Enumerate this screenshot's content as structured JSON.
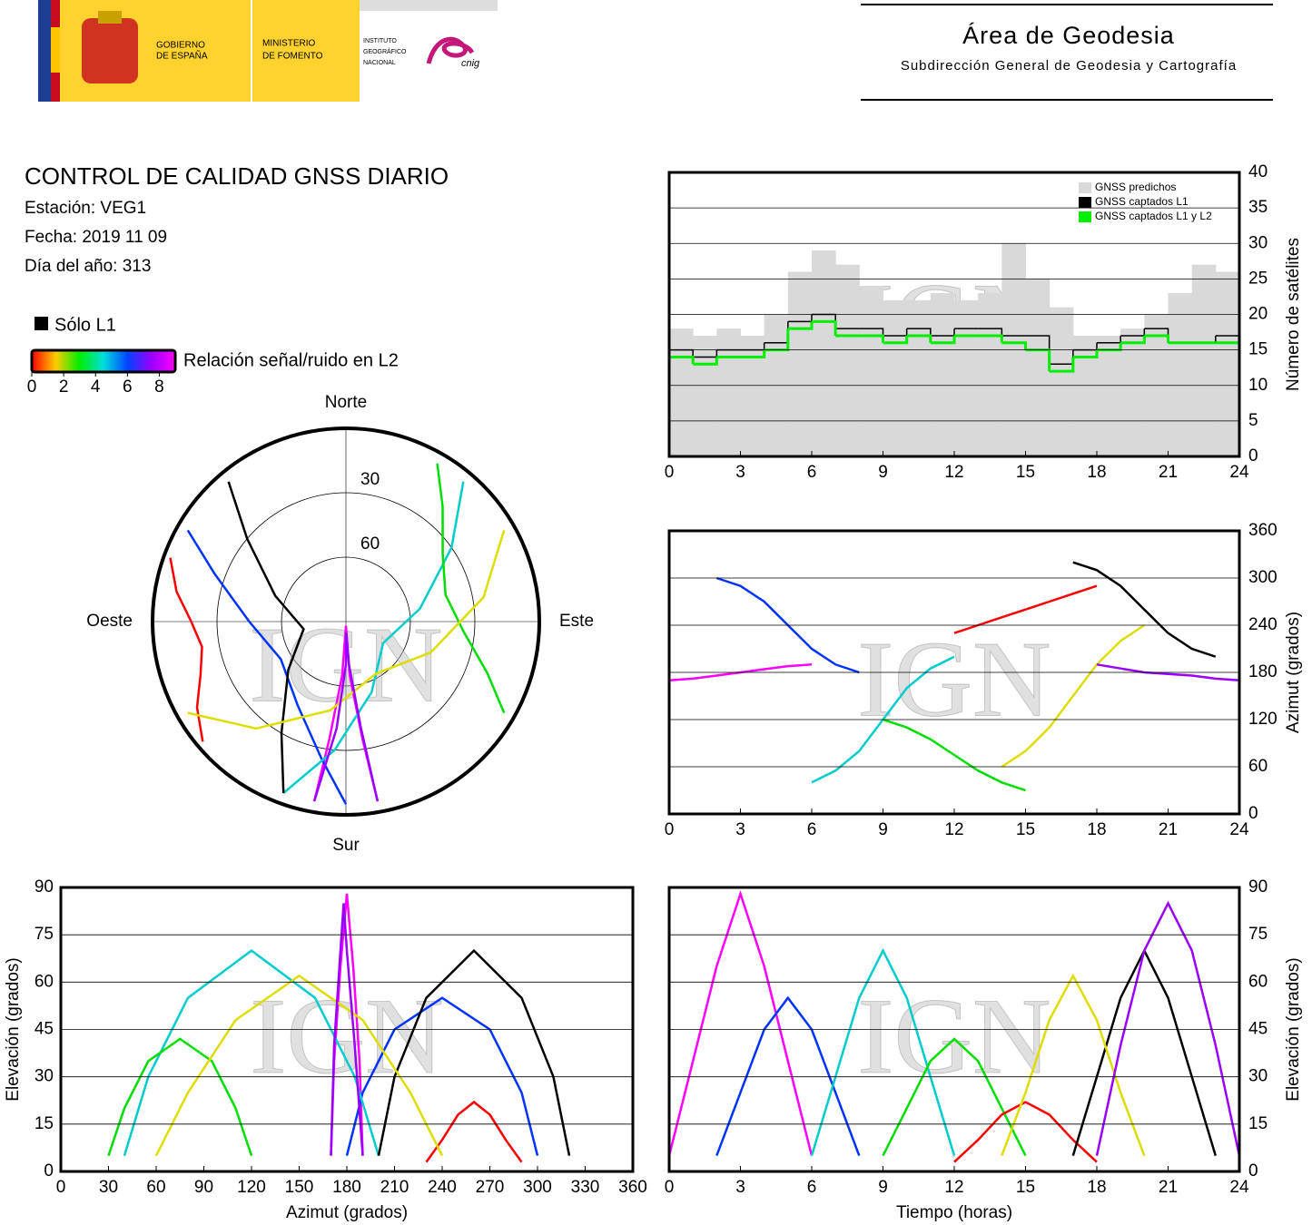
{
  "header": {
    "gobierno": [
      "GOBIERNO",
      "DE ESPAÑA"
    ],
    "ministerio": [
      "MINISTERIO",
      "DE FOMENTO"
    ],
    "instituto": [
      "INSTITUTO",
      "GEOGRÁFICO",
      "NACIONAL"
    ],
    "cnig": "cnig",
    "title": "Área de Geodesia",
    "subtitle": "Subdirección General de Geodesia y Cartografía"
  },
  "report": {
    "title": "CONTROL DE CALIDAD GNSS DIARIO",
    "lines": [
      "Estación: VEG1",
      "Fecha: 2019 11 09",
      "Día del año: 313"
    ]
  },
  "legend": {
    "l1": "Sólo L1",
    "l1_color": "#000000",
    "snr": "Relación señal/ruido en L2",
    "snr_ticks": [
      0,
      2,
      4,
      6,
      8
    ],
    "snr_range": [
      0,
      9
    ],
    "snr_colors": [
      "#ff0000",
      "#ffcc00",
      "#00ee00",
      "#00dddd",
      "#0044ff",
      "#9900ff",
      "#ff00ff"
    ]
  },
  "watermark": "IGN",
  "chart_data": [
    {
      "type": "polar",
      "directions": [
        "Norte",
        "Este",
        "Sur",
        "Oeste"
      ],
      "rticks": [
        30,
        60
      ],
      "rlim": [
        0,
        90
      ],
      "series": [
        {
          "color": "#ff00ff",
          "azimuth": [
            170,
            172,
            176,
            180,
            184,
            188,
            190
          ],
          "values": [
            5,
            35,
            65,
            88,
            65,
            35,
            5
          ]
        },
        {
          "color": "#0033ff",
          "azimuth": [
            300,
            290,
            270,
            240,
            210,
            190,
            180
          ],
          "values": [
            5,
            25,
            45,
            55,
            45,
            25,
            5
          ]
        },
        {
          "color": "#00cccc",
          "azimuth": [
            40,
            55,
            80,
            120,
            160,
            185,
            200
          ],
          "values": [
            5,
            30,
            55,
            70,
            55,
            30,
            5
          ]
        },
        {
          "color": "#00dd00",
          "azimuth": [
            120,
            110,
            95,
            75,
            55,
            40,
            30
          ],
          "values": [
            5,
            20,
            35,
            42,
            35,
            20,
            5
          ]
        },
        {
          "color": "#ff0000",
          "azimuth": [
            230,
            240,
            250,
            260,
            270,
            280,
            290
          ],
          "values": [
            3,
            10,
            18,
            22,
            18,
            10,
            3
          ]
        },
        {
          "color": "#000000",
          "azimuth": [
            320,
            310,
            290,
            260,
            230,
            210,
            200
          ],
          "values": [
            5,
            30,
            55,
            70,
            55,
            30,
            5
          ]
        },
        {
          "color": "#dddd00",
          "azimuth": [
            60,
            80,
            110,
            150,
            190,
            220,
            240
          ],
          "values": [
            5,
            25,
            48,
            62,
            48,
            25,
            5
          ]
        },
        {
          "color": "#9900ff",
          "azimuth": [
            190,
            185,
            180,
            178,
            176,
            172,
            170
          ],
          "values": [
            5,
            40,
            70,
            85,
            70,
            40,
            5
          ]
        }
      ]
    },
    {
      "type": "step",
      "ylabel": "Número de satélites",
      "xlim": [
        0,
        24
      ],
      "ylim": [
        0,
        40
      ],
      "xticks": [
        0,
        3,
        6,
        9,
        12,
        15,
        18,
        21,
        24
      ],
      "yticks": [
        0,
        5,
        10,
        15,
        20,
        25,
        30,
        35,
        40
      ],
      "grid": true,
      "yaxis": "right",
      "legend": "top-right",
      "x": [
        0,
        1,
        2,
        3,
        4,
        5,
        6,
        7,
        8,
        9,
        10,
        11,
        12,
        13,
        14,
        15,
        16,
        17,
        18,
        19,
        20,
        21,
        22,
        23
      ],
      "series": [
        {
          "name": "GNSS predichos",
          "color": "#d9d9d9",
          "fill": true,
          "values": [
            18,
            17,
            18,
            17,
            20,
            26,
            29,
            27,
            24,
            22,
            22,
            23,
            22,
            23,
            30,
            25,
            21,
            17,
            17,
            18,
            20,
            23,
            27,
            26
          ]
        },
        {
          "name": "GNSS captados L1",
          "color": "#000000",
          "values": [
            15,
            14,
            15,
            15,
            16,
            19,
            20,
            18,
            18,
            17,
            18,
            17,
            18,
            18,
            17,
            17,
            13,
            15,
            16,
            17,
            18,
            16,
            16,
            17
          ]
        },
        {
          "name": "GNSS captados L1 y L2",
          "color": "#00ee00",
          "values": [
            14,
            13,
            14,
            14,
            15,
            18,
            19,
            17,
            17,
            16,
            17,
            16,
            17,
            17,
            16,
            15,
            12,
            14,
            15,
            16,
            17,
            16,
            16,
            16
          ]
        }
      ]
    },
    {
      "type": "line",
      "ylabel": "Azimut (grados)",
      "xlim": [
        0,
        24
      ],
      "ylim": [
        0,
        360
      ],
      "xticks": [
        0,
        3,
        6,
        9,
        12,
        15,
        18,
        21,
        24
      ],
      "yticks": [
        0,
        60,
        120,
        180,
        240,
        300,
        360
      ],
      "grid": true,
      "yaxis": "right",
      "series": [
        {
          "color": "#ff00ff",
          "x": [
            0,
            1,
            2,
            3,
            4,
            5,
            6
          ],
          "values": [
            170,
            172,
            176,
            180,
            184,
            188,
            190
          ]
        },
        {
          "color": "#0033ff",
          "x": [
            2,
            3,
            4,
            5,
            6,
            7,
            8
          ],
          "values": [
            300,
            290,
            270,
            240,
            210,
            190,
            180
          ]
        },
        {
          "color": "#00cccc",
          "x": [
            6,
            7,
            8,
            9,
            10,
            11,
            12
          ],
          "values": [
            40,
            55,
            80,
            120,
            160,
            185,
            200
          ]
        },
        {
          "color": "#00dd00",
          "x": [
            9,
            10,
            11,
            12,
            13,
            14,
            15
          ],
          "values": [
            120,
            110,
            95,
            75,
            55,
            40,
            30
          ]
        },
        {
          "color": "#ff0000",
          "x": [
            12,
            13,
            14,
            15,
            16,
            17,
            18
          ],
          "values": [
            230,
            240,
            250,
            260,
            270,
            280,
            290
          ]
        },
        {
          "color": "#000000",
          "x": [
            17,
            18,
            19,
            20,
            21,
            22,
            23
          ],
          "values": [
            320,
            310,
            290,
            260,
            230,
            210,
            200
          ]
        },
        {
          "color": "#dddd00",
          "x": [
            14,
            15,
            16,
            17,
            18,
            19,
            20
          ],
          "values": [
            60,
            80,
            110,
            150,
            190,
            220,
            240
          ]
        },
        {
          "color": "#9900ff",
          "x": [
            18,
            19,
            20,
            21,
            22,
            23,
            24
          ],
          "values": [
            190,
            185,
            180,
            178,
            176,
            172,
            170
          ]
        }
      ]
    },
    {
      "type": "line",
      "xlabel": "Azimut (grados)",
      "ylabel": "Elevación (grados)",
      "xlim": [
        0,
        360
      ],
      "ylim": [
        0,
        90
      ],
      "xticks": [
        0,
        30,
        60,
        90,
        120,
        150,
        180,
        210,
        240,
        270,
        300,
        330,
        360
      ],
      "yticks": [
        0,
        15,
        30,
        45,
        60,
        75,
        90
      ],
      "grid": true,
      "yaxis": "left",
      "series": [
        {
          "color": "#ff00ff",
          "x": [
            170,
            172,
            176,
            180,
            184,
            188,
            190
          ],
          "values": [
            5,
            35,
            65,
            88,
            65,
            35,
            5
          ]
        },
        {
          "color": "#0033ff",
          "x": [
            300,
            290,
            270,
            240,
            210,
            190,
            180
          ],
          "values": [
            5,
            25,
            45,
            55,
            45,
            25,
            5
          ]
        },
        {
          "color": "#00cccc",
          "x": [
            40,
            55,
            80,
            120,
            160,
            185,
            200
          ],
          "values": [
            5,
            30,
            55,
            70,
            55,
            30,
            5
          ]
        },
        {
          "color": "#00dd00",
          "x": [
            120,
            110,
            95,
            75,
            55,
            40,
            30
          ],
          "values": [
            5,
            20,
            35,
            42,
            35,
            20,
            5
          ]
        },
        {
          "color": "#ff0000",
          "x": [
            230,
            240,
            250,
            260,
            270,
            280,
            290
          ],
          "values": [
            3,
            10,
            18,
            22,
            18,
            10,
            3
          ]
        },
        {
          "color": "#000000",
          "x": [
            320,
            310,
            290,
            260,
            230,
            210,
            200
          ],
          "values": [
            5,
            30,
            55,
            70,
            55,
            30,
            5
          ]
        },
        {
          "color": "#dddd00",
          "x": [
            60,
            80,
            110,
            150,
            190,
            220,
            240
          ],
          "values": [
            5,
            25,
            48,
            62,
            48,
            25,
            5
          ]
        },
        {
          "color": "#9900ff",
          "x": [
            190,
            185,
            180,
            178,
            176,
            172,
            170
          ],
          "values": [
            5,
            40,
            70,
            85,
            70,
            40,
            5
          ]
        }
      ]
    },
    {
      "type": "line",
      "xlabel": "Tiempo (horas)",
      "ylabel": "Elevación (grados)",
      "xlim": [
        0,
        24
      ],
      "ylim": [
        0,
        90
      ],
      "xticks": [
        0,
        3,
        6,
        9,
        12,
        15,
        18,
        21,
        24
      ],
      "yticks": [
        0,
        15,
        30,
        45,
        60,
        75,
        90
      ],
      "grid": true,
      "yaxis": "right",
      "series": [
        {
          "color": "#ff00ff",
          "x": [
            0,
            1,
            2,
            3,
            4,
            5,
            6
          ],
          "values": [
            5,
            35,
            65,
            88,
            65,
            35,
            5
          ]
        },
        {
          "color": "#0033ff",
          "x": [
            2,
            3,
            4,
            5,
            6,
            7,
            8
          ],
          "values": [
            5,
            25,
            45,
            55,
            45,
            25,
            5
          ]
        },
        {
          "color": "#00cccc",
          "x": [
            6,
            7,
            8,
            9,
            10,
            11,
            12
          ],
          "values": [
            5,
            30,
            55,
            70,
            55,
            30,
            5
          ]
        },
        {
          "color": "#00dd00",
          "x": [
            9,
            10,
            11,
            12,
            13,
            14,
            15
          ],
          "values": [
            5,
            20,
            35,
            42,
            35,
            20,
            5
          ]
        },
        {
          "color": "#ff0000",
          "x": [
            12,
            13,
            14,
            15,
            16,
            17,
            18
          ],
          "values": [
            3,
            10,
            18,
            22,
            18,
            10,
            3
          ]
        },
        {
          "color": "#000000",
          "x": [
            17,
            18,
            19,
            20,
            21,
            22,
            23
          ],
          "values": [
            5,
            30,
            55,
            70,
            55,
            30,
            5
          ]
        },
        {
          "color": "#dddd00",
          "x": [
            14,
            15,
            16,
            17,
            18,
            19,
            20
          ],
          "values": [
            5,
            25,
            48,
            62,
            48,
            25,
            5
          ]
        },
        {
          "color": "#9900ff",
          "x": [
            18,
            19,
            20,
            21,
            22,
            23,
            24
          ],
          "values": [
            5,
            40,
            70,
            85,
            70,
            40,
            5
          ]
        }
      ]
    }
  ]
}
